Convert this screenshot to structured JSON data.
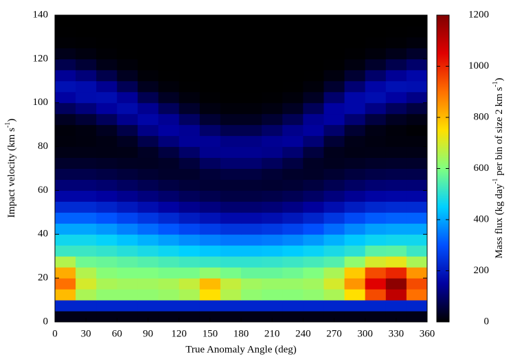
{
  "chart_data": {
    "type": "heatmap",
    "xlabel": "True Anomaly Angle (deg)",
    "ylabel_parts": [
      "Impact velocity (km s",
      "-1",
      ")"
    ],
    "colorbar_label_parts": [
      "Mass flux (kg day",
      "-1",
      " per bin of size 2 km s",
      "-1",
      ")"
    ],
    "xlim": [
      0,
      360
    ],
    "xticks": [
      0,
      30,
      60,
      90,
      120,
      150,
      180,
      210,
      240,
      270,
      300,
      330,
      360
    ],
    "ylim": [
      0,
      140
    ],
    "yticks": [
      0,
      20,
      40,
      60,
      80,
      100,
      120,
      140
    ],
    "clim": [
      0,
      1200
    ],
    "cticks": [
      0,
      200,
      400,
      600,
      800,
      1000,
      1200
    ],
    "colormap": [
      "#000000",
      "#0000a0",
      "#0050ff",
      "#00d0ff",
      "#80ff80",
      "#ffe000",
      "#ff7000",
      "#e00000",
      "#800000"
    ],
    "xbins": [
      0,
      20,
      40,
      60,
      80,
      100,
      120,
      140,
      160,
      180,
      200,
      220,
      240,
      260,
      280,
      300,
      320,
      340,
      360
    ],
    "ybins": [
      0,
      5,
      10,
      15,
      20,
      25,
      30,
      35,
      40,
      45,
      50,
      55,
      60,
      65,
      70,
      75,
      80,
      85,
      90,
      95,
      100,
      105,
      110,
      115,
      120,
      125,
      130,
      135,
      140
    ],
    "values": [
      [
        20,
        20,
        20,
        20,
        20,
        20,
        20,
        20,
        20,
        20,
        20,
        20,
        20,
        20,
        20,
        20,
        20,
        20
      ],
      [
        220,
        220,
        220,
        220,
        220,
        220,
        220,
        220,
        220,
        220,
        220,
        220,
        220,
        220,
        220,
        220,
        220,
        220
      ],
      [
        800,
        650,
        620,
        620,
        620,
        630,
        650,
        750,
        660,
        620,
        610,
        610,
        620,
        650,
        750,
        950,
        1100,
        900
      ],
      [
        900,
        700,
        650,
        640,
        640,
        650,
        680,
        800,
        680,
        640,
        630,
        630,
        640,
        700,
        850,
        1050,
        1180,
        950
      ],
      [
        820,
        660,
        610,
        600,
        600,
        590,
        590,
        620,
        590,
        570,
        570,
        580,
        600,
        650,
        780,
        950,
        1000,
        850
      ],
      [
        660,
        580,
        572,
        560,
        548,
        536,
        524,
        516,
        508,
        508,
        512,
        520,
        532,
        548,
        620,
        700,
        720,
        650
      ],
      [
        520,
        520,
        510,
        495,
        480,
        465,
        450,
        440,
        430,
        430,
        435,
        445,
        460,
        480,
        500,
        555,
        560,
        520
      ],
      [
        470,
        470,
        456,
        435,
        414,
        393,
        372,
        358,
        344,
        344,
        351,
        365,
        386,
        414,
        442,
        463,
        470,
        470
      ],
      [
        400,
        400,
        383,
        358,
        332,
        307,
        281,
        264,
        247,
        247,
        256,
        273,
        298,
        332,
        366,
        392,
        400,
        400
      ],
      [
        320,
        320,
        303,
        278,
        252,
        227,
        201,
        184,
        167,
        167,
        176,
        193,
        218,
        252,
        286,
        312,
        320,
        320
      ],
      [
        230,
        230,
        216,
        195,
        174,
        153,
        132,
        118,
        104,
        104,
        111,
        125,
        146,
        174,
        202,
        223,
        230,
        230
      ],
      [
        160,
        160,
        149,
        133,
        116,
        100,
        83,
        73,
        64,
        64,
        68,
        78,
        94,
        116,
        138,
        155,
        160,
        160
      ],
      [
        110,
        110,
        102,
        89,
        76,
        63,
        53,
        49,
        48,
        48,
        45,
        49,
        59,
        76,
        93,
        106,
        110,
        110
      ],
      [
        70,
        70,
        64,
        55,
        47,
        40,
        40,
        53,
        61,
        61,
        50,
        39,
        37,
        46,
        58,
        67,
        70,
        70
      ],
      [
        40,
        40,
        37,
        32,
        31,
        37,
        56,
        89,
        104,
        104,
        86,
        62,
        35,
        28,
        33,
        38,
        40,
        40
      ],
      [
        20,
        20,
        19,
        20,
        34,
        60,
        97,
        132,
        135,
        135,
        129,
        105,
        58,
        25,
        19,
        20,
        20,
        20
      ],
      [
        11,
        13,
        18,
        31,
        70,
        113,
        141,
        139,
        125,
        125,
        137,
        144,
        109,
        50,
        22,
        15,
        11,
        11
      ],
      [
        9,
        14,
        30,
        67,
        125,
        150,
        138,
        98,
        74,
        74,
        97,
        129,
        147,
        100,
        47,
        19,
        9,
        4
      ],
      [
        31,
        50,
        84,
        131,
        160,
        138,
        91,
        48,
        30,
        30,
        47,
        79,
        135,
        152,
        107,
        60,
        31,
        19
      ],
      [
        86,
        113,
        148,
        168,
        135,
        84,
        40,
        15,
        8,
        8,
        15,
        32,
        82,
        152,
        162,
        125,
        86,
        60
      ],
      [
        152,
        171,
        175,
        142,
        76,
        34,
        12,
        3,
        1,
        1,
        3,
        9,
        33,
        100,
        162,
        175,
        152,
        126
      ],
      [
        180,
        171,
        136,
        80,
        28,
        9,
        2,
        0,
        0,
        0,
        0,
        1,
        9,
        44,
        107,
        160,
        180,
        176
      ],
      [
        140,
        113,
        70,
        30,
        7,
        1,
        0,
        0,
        0,
        0,
        0,
        0,
        1,
        13,
        47,
        98,
        140,
        162
      ],
      [
        72,
        50,
        22,
        8,
        1,
        0,
        0,
        0,
        0,
        0,
        0,
        0,
        0,
        2,
        14,
        40,
        72,
        99
      ],
      [
        23,
        14,
        5,
        1,
        0,
        0,
        0,
        0,
        0,
        0,
        0,
        0,
        0,
        0,
        3,
        10,
        23,
        40
      ],
      [
        5,
        3,
        1,
        0,
        0,
        0,
        0,
        0,
        0,
        0,
        0,
        0,
        0,
        0,
        0,
        2,
        5,
        10
      ],
      [
        1,
        0,
        0,
        0,
        0,
        0,
        0,
        0,
        0,
        0,
        0,
        0,
        0,
        0,
        0,
        0,
        1,
        2
      ],
      [
        0,
        0,
        0,
        0,
        0,
        0,
        0,
        0,
        0,
        0,
        0,
        0,
        0,
        0,
        0,
        0,
        0,
        0
      ]
    ]
  }
}
